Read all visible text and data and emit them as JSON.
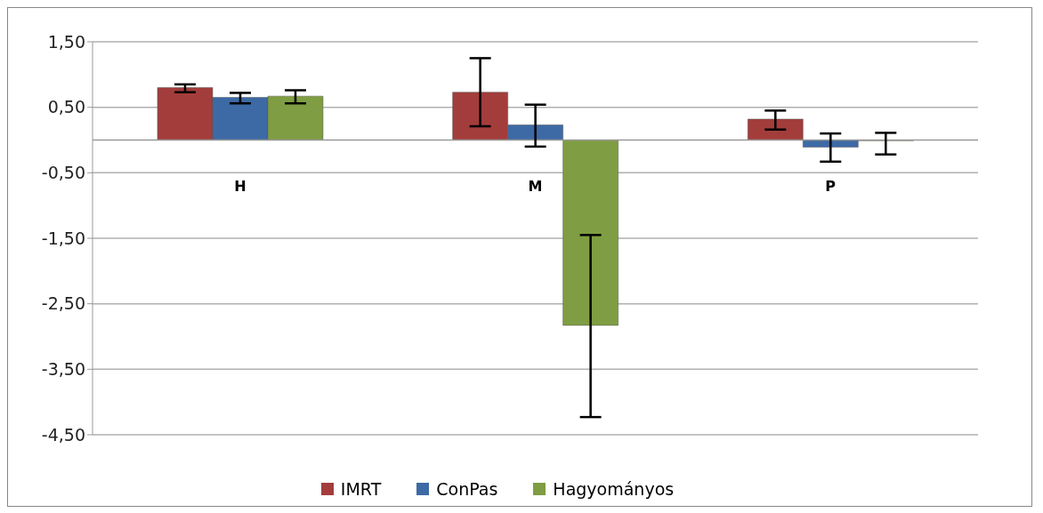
{
  "chart_data": {
    "type": "bar",
    "categories": [
      "H",
      "M",
      "P"
    ],
    "series": [
      {
        "name": "IMRT",
        "color": "#a33d3b",
        "values": [
          0.8,
          0.73,
          0.32
        ],
        "errors": [
          [
            0.73,
            0.85
          ],
          [
            0.21,
            1.25
          ],
          [
            0.16,
            0.45
          ]
        ]
      },
      {
        "name": "ConPas",
        "color": "#3d6aa5",
        "values": [
          0.65,
          0.23,
          -0.11
        ],
        "errors": [
          [
            0.56,
            0.72
          ],
          [
            -0.1,
            0.54
          ],
          [
            -0.33,
            0.1
          ]
        ]
      },
      {
        "name": "Hagyományos",
        "color": "#7f9d42",
        "values": [
          0.67,
          -2.83,
          -0.01
        ],
        "errors": [
          [
            0.56,
            0.76
          ],
          [
            -4.23,
            -1.45
          ],
          [
            -0.22,
            0.11
          ]
        ]
      }
    ],
    "ylim": [
      -4.5,
      1.5
    ],
    "yticks": [
      {
        "value": -4.5,
        "label": "-4,50"
      },
      {
        "value": -3.5,
        "label": "-3,50"
      },
      {
        "value": -2.5,
        "label": "-2,50"
      },
      {
        "value": -1.5,
        "label": "-1,50"
      },
      {
        "value": -0.5,
        "label": "-0,50"
      },
      {
        "value": 0.5,
        "label": "0,50"
      },
      {
        "value": 1.5,
        "label": "1,50"
      }
    ],
    "grid": "y",
    "legend": "bottom"
  }
}
